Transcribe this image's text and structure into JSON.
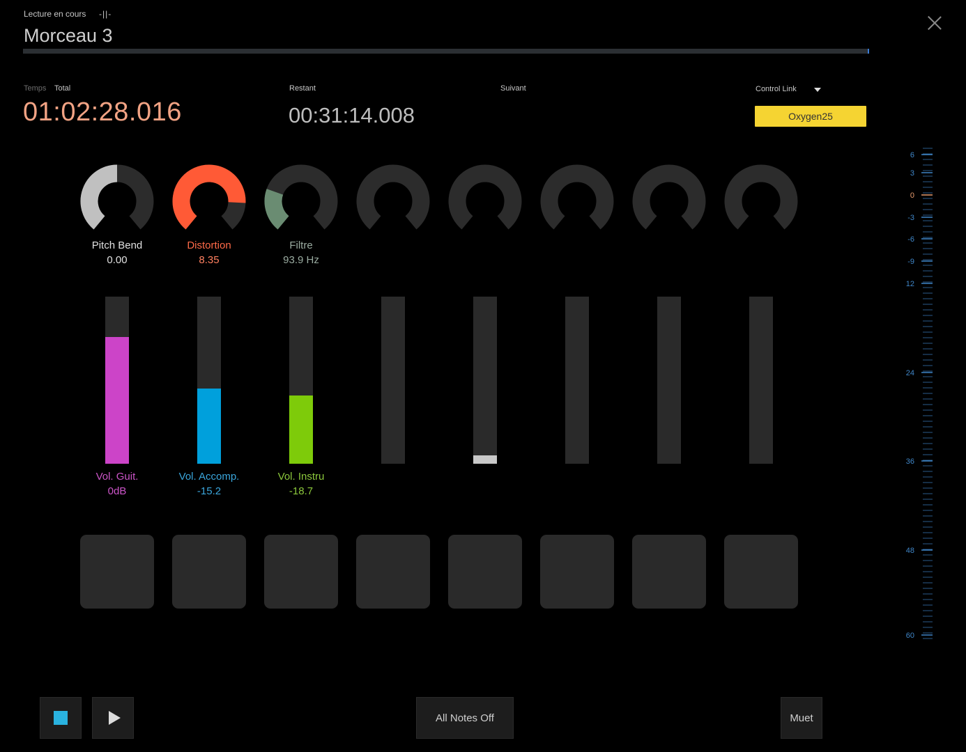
{
  "header": {
    "now_playing_label": "Lecture en cours",
    "marker": "-||-",
    "song_title": "Morceau 3",
    "progress": 1.0
  },
  "times": {
    "time_label": "Temps",
    "total_label": "Total",
    "total_value": "01:02:28.016",
    "remaining_label": "Restant",
    "remaining_value": "00:31:14.008",
    "next_label": "Suivant"
  },
  "control_link": {
    "label": "Control Link",
    "device": "Oxygen25",
    "device_color": "#f5d432"
  },
  "knobs": [
    {
      "name": "Pitch Bend",
      "value": "0.00",
      "fraction": 0.5,
      "color": "#c0c0c0",
      "text_color": "#e0e0e0",
      "value_color": "#e0e0e0",
      "fill_from": "start"
    },
    {
      "name": "Distortion",
      "value": "8.35",
      "fraction": 0.83,
      "color": "#ff5a36",
      "text_color": "#ff6a48",
      "value_color": "#ff8060",
      "fill_from": "start"
    },
    {
      "name": "Filtre",
      "value": "93.9 Hz",
      "fraction": 0.25,
      "color": "#6a8c72",
      "text_color": "#9aaba0",
      "value_color": "#9aaba0",
      "fill_from": "start"
    },
    {
      "name": "",
      "value": "",
      "fraction": 0,
      "color": "#2c2c2c",
      "text_color": "#888",
      "value_color": "#888",
      "fill_from": "start"
    },
    {
      "name": "",
      "value": "",
      "fraction": 0,
      "color": "#2c2c2c",
      "text_color": "#888",
      "value_color": "#888",
      "fill_from": "start"
    },
    {
      "name": "",
      "value": "",
      "fraction": 0,
      "color": "#2c2c2c",
      "text_color": "#888",
      "value_color": "#888",
      "fill_from": "start"
    },
    {
      "name": "",
      "value": "",
      "fraction": 0,
      "color": "#2c2c2c",
      "text_color": "#888",
      "value_color": "#888",
      "fill_from": "start"
    },
    {
      "name": "",
      "value": "",
      "fraction": 0,
      "color": "#2c2c2c",
      "text_color": "#888",
      "value_color": "#888",
      "fill_from": "start"
    }
  ],
  "faders": [
    {
      "name": "Vol. Guit.",
      "value": "0dB",
      "level": 0.76,
      "color": "#cc44c8",
      "text_color": "#cc55c8"
    },
    {
      "name": "Vol. Accomp.",
      "value": "-15.2",
      "level": 0.45,
      "color": "#00a0dc",
      "text_color": "#3aa6dc"
    },
    {
      "name": "Vol. Instru",
      "value": "-18.7",
      "level": 0.41,
      "color": "#7ecb0a",
      "text_color": "#8cc83c"
    },
    {
      "name": "",
      "value": "",
      "level": 0,
      "color": "#2a2a2a",
      "text_color": "#888"
    },
    {
      "name": "",
      "value": "",
      "level": 0.05,
      "color": "#c8c8c8",
      "text_color": "#888"
    },
    {
      "name": "",
      "value": "",
      "level": 0,
      "color": "#2a2a2a",
      "text_color": "#888"
    },
    {
      "name": "",
      "value": "",
      "level": 0,
      "color": "#2a2a2a",
      "text_color": "#888"
    },
    {
      "name": "",
      "value": "",
      "level": 0,
      "color": "#2a2a2a",
      "text_color": "#888"
    }
  ],
  "pads": 8,
  "meter": {
    "labels": [
      "6",
      "3",
      "0",
      "-3",
      "-6",
      "-9",
      "12",
      "24",
      "36",
      "48",
      "60"
    ],
    "zero_color": "#e89c6e",
    "label_color": "#3f86c8"
  },
  "transport": {
    "stop_icon": "stop-icon",
    "play_icon": "play-icon",
    "all_notes_off": "All Notes Off",
    "mute": "Muet",
    "stop_color": "#2ab3e0"
  }
}
